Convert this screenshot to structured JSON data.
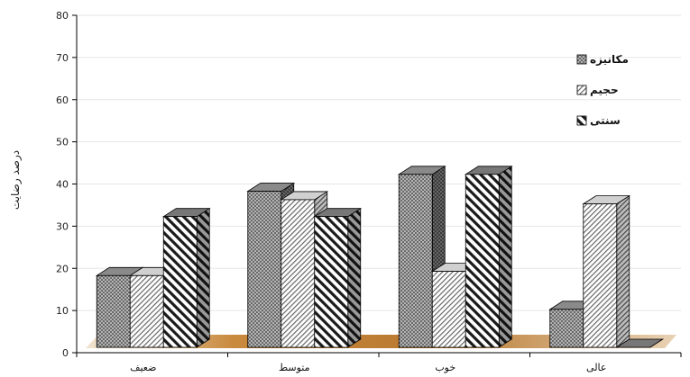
{
  "chart_data": {
    "type": "bar",
    "title": "",
    "xlabel": "",
    "ylabel": "درصد رضایت",
    "ylim": [
      0,
      80
    ],
    "yticks": [
      0,
      10,
      20,
      30,
      40,
      50,
      60,
      70,
      80
    ],
    "grid": true,
    "legend_position": "top-right",
    "categories": [
      "ضعیف",
      "متوسط",
      "خوب",
      "عالی"
    ],
    "series": [
      {
        "name": "مکانیزه",
        "values": [
          17,
          37,
          41,
          9
        ],
        "pattern": "dots",
        "color": "#555555"
      },
      {
        "name": "حجیم",
        "values": [
          17,
          35,
          18,
          34
        ],
        "pattern": "light-diagonal",
        "color": "#777777"
      },
      {
        "name": "سنتی",
        "values": [
          31,
          31,
          41,
          0
        ],
        "pattern": "heavy-diagonal",
        "color": "#222222"
      }
    ],
    "floor_color": "#c98a3e"
  }
}
